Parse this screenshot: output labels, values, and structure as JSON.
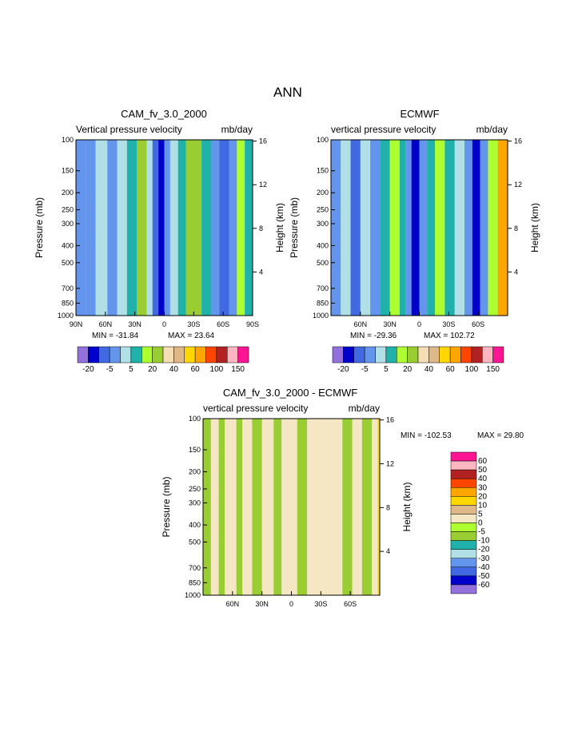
{
  "page": {
    "title": "ANN"
  },
  "colors": {
    "palette13": [
      "#9370db",
      "#0000cd",
      "#4169e1",
      "#6495ed",
      "#b0e0e6",
      "#20b2aa",
      "#adff2f",
      "#9acd32",
      "#f5deb3",
      "#deb887",
      "#ffd700",
      "#ffa500",
      "#ff4500",
      "#b22222",
      "#ffb6c1",
      "#ff1493"
    ],
    "diff": [
      "#9370db",
      "#0000cd",
      "#4169e1",
      "#6495ed",
      "#b0e0e6",
      "#20b2aa",
      "#9acd32",
      "#adff2f",
      "#f5e6c4",
      "#deb887",
      "#ffd700",
      "#ffa500",
      "#ff4500",
      "#b22222",
      "#ffb6c1",
      "#ff1493"
    ]
  },
  "chart_data": [
    {
      "type": "heatmap",
      "id": "cam",
      "title": "CAM_fv_3.0_2000",
      "subtitle_left": "Vertical pressure velocity",
      "subtitle_right": "mb/day",
      "ylabel": "Pressure (mb)",
      "y2label": "Height (km)",
      "yticks": [
        "100",
        "150",
        "200",
        "250",
        "300",
        "400",
        "500",
        "700",
        "850",
        "1000"
      ],
      "y2ticks": [
        "16",
        "12",
        "8",
        "4"
      ],
      "xticks": [
        "90N",
        "60N",
        "30N",
        "0",
        "30S",
        "60S",
        "90S"
      ],
      "min_label": "MIN = -31.84",
      "max_label": "MAX = 23.64",
      "colorbar_labels": [
        "-20",
        "-5",
        "5",
        "20",
        "40",
        "60",
        "100",
        "150"
      ],
      "bands": [
        {
          "lat": [
            90,
            80
          ],
          "level": 3
        },
        {
          "lat": [
            80,
            70
          ],
          "level": 3
        },
        {
          "lat": [
            70,
            58
          ],
          "level": 4
        },
        {
          "lat": [
            58,
            48
          ],
          "level": 3
        },
        {
          "lat": [
            48,
            38
          ],
          "level": 4
        },
        {
          "lat": [
            38,
            28
          ],
          "level": 5
        },
        {
          "lat": [
            28,
            18
          ],
          "level": 7
        },
        {
          "lat": [
            18,
            12
          ],
          "level": 4
        },
        {
          "lat": [
            12,
            6
          ],
          "level": 2
        },
        {
          "lat": [
            6,
            0
          ],
          "level": 1
        },
        {
          "lat": [
            0,
            -6
          ],
          "level": 3
        },
        {
          "lat": [
            -6,
            -14
          ],
          "level": 4
        },
        {
          "lat": [
            -14,
            -22
          ],
          "level": 5
        },
        {
          "lat": [
            -22,
            -38
          ],
          "level": 7
        },
        {
          "lat": [
            -38,
            -48
          ],
          "level": 5
        },
        {
          "lat": [
            -48,
            -56
          ],
          "level": 3
        },
        {
          "lat": [
            -56,
            -66
          ],
          "level": 2
        },
        {
          "lat": [
            -66,
            -74
          ],
          "level": 3
        },
        {
          "lat": [
            -74,
            -82
          ],
          "level": 6
        },
        {
          "lat": [
            -82,
            -90
          ],
          "level": 5
        }
      ]
    },
    {
      "type": "heatmap",
      "id": "ecmwf",
      "title": "ECMWF",
      "subtitle_left": "vertical pressure velocity",
      "subtitle_right": "mb/day",
      "ylabel": "Pressure (mb)",
      "y2label": "Height (km)",
      "yticks": [
        "100",
        "150",
        "200",
        "250",
        "300",
        "400",
        "500",
        "700",
        "850",
        "1000"
      ],
      "y2ticks": [
        "16",
        "12",
        "8",
        "4"
      ],
      "xticks": [
        "60N",
        "30N",
        "0",
        "30S",
        "60S"
      ],
      "min_label": "MIN = -29.36",
      "max_label": "MAX = 102.72",
      "colorbar_labels": [
        "-20",
        "-5",
        "5",
        "20",
        "40",
        "60",
        "100",
        "150"
      ],
      "bands": [
        {
          "lat": [
            90,
            80
          ],
          "level": 3
        },
        {
          "lat": [
            80,
            70
          ],
          "level": 4
        },
        {
          "lat": [
            70,
            60
          ],
          "level": 2
        },
        {
          "lat": [
            60,
            50
          ],
          "level": 4
        },
        {
          "lat": [
            50,
            40
          ],
          "level": 3
        },
        {
          "lat": [
            40,
            30
          ],
          "level": 5
        },
        {
          "lat": [
            30,
            20
          ],
          "level": 6
        },
        {
          "lat": [
            20,
            14
          ],
          "level": 5
        },
        {
          "lat": [
            14,
            8
          ],
          "level": 3
        },
        {
          "lat": [
            8,
            0
          ],
          "level": 1
        },
        {
          "lat": [
            0,
            -8
          ],
          "level": 3
        },
        {
          "lat": [
            -8,
            -16
          ],
          "level": 5
        },
        {
          "lat": [
            -16,
            -26
          ],
          "level": 6
        },
        {
          "lat": [
            -26,
            -36
          ],
          "level": 5
        },
        {
          "lat": [
            -36,
            -46
          ],
          "level": 4
        },
        {
          "lat": [
            -46,
            -54
          ],
          "level": 3
        },
        {
          "lat": [
            -54,
            -62
          ],
          "level": 1
        },
        {
          "lat": [
            -62,
            -70
          ],
          "level": 3
        },
        {
          "lat": [
            -70,
            -80
          ],
          "level": 6
        },
        {
          "lat": [
            -80,
            -90
          ],
          "level": 11
        }
      ]
    },
    {
      "type": "heatmap",
      "id": "diff",
      "title": "CAM_fv_3.0_2000 - ECMWF",
      "subtitle_left": "vertical pressure velocity",
      "subtitle_right": "mb/day",
      "ylabel": "Pressure (mb)",
      "y2label": "Height (km)",
      "yticks": [
        "100",
        "150",
        "200",
        "250",
        "300",
        "400",
        "500",
        "700",
        "850",
        "1000"
      ],
      "y2ticks": [
        "16",
        "12",
        "8",
        "4"
      ],
      "xticks": [
        "60N",
        "30N",
        "0",
        "30S",
        "60S"
      ],
      "min_label": "MIN = -102.53",
      "max_label": "MAX =  29.80",
      "colorbar_labels": [
        "60",
        "50",
        "40",
        "30",
        "20",
        "10",
        "5",
        "0",
        "-5",
        "-10",
        "-20",
        "-30",
        "-40",
        "-50",
        "-60"
      ],
      "bands": [
        {
          "lat": [
            90,
            82
          ],
          "level": 6
        },
        {
          "lat": [
            82,
            74
          ],
          "level": 8
        },
        {
          "lat": [
            74,
            68
          ],
          "level": 6
        },
        {
          "lat": [
            68,
            56
          ],
          "level": 8
        },
        {
          "lat": [
            56,
            50
          ],
          "level": 6
        },
        {
          "lat": [
            50,
            40
          ],
          "level": 8
        },
        {
          "lat": [
            40,
            30
          ],
          "level": 6
        },
        {
          "lat": [
            30,
            18
          ],
          "level": 8
        },
        {
          "lat": [
            18,
            10
          ],
          "level": 6
        },
        {
          "lat": [
            10,
            4
          ],
          "level": 8
        },
        {
          "lat": [
            4,
            -6
          ],
          "level": 8
        },
        {
          "lat": [
            -6,
            -16
          ],
          "level": 6
        },
        {
          "lat": [
            -16,
            -30
          ],
          "level": 8
        },
        {
          "lat": [
            -30,
            -40
          ],
          "level": 8
        },
        {
          "lat": [
            -40,
            -52
          ],
          "level": 8
        },
        {
          "lat": [
            -52,
            -62
          ],
          "level": 6
        },
        {
          "lat": [
            -62,
            -72
          ],
          "level": 8
        },
        {
          "lat": [
            -72,
            -82
          ],
          "level": 6
        },
        {
          "lat": [
            -82,
            -88
          ],
          "level": 8
        },
        {
          "lat": [
            -88,
            -90
          ],
          "level": 10
        }
      ]
    }
  ]
}
